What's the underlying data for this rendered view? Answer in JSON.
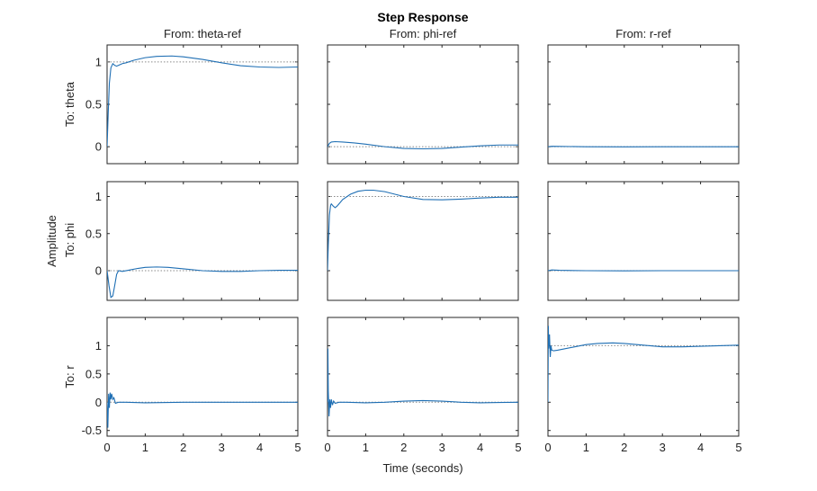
{
  "chart_data": {
    "type": "line",
    "title": "Step Response",
    "xlabel": "Time (seconds)",
    "ylabel": "Amplitude",
    "xlim": [
      0,
      5
    ],
    "x_ticks": [
      "0",
      "1",
      "2",
      "3",
      "4",
      "5"
    ],
    "columns": [
      "From: theta-ref",
      "From: phi-ref",
      "From: r-ref"
    ],
    "rows": [
      {
        "label": "To: theta",
        "ylim": [
          -0.2,
          1.2
        ],
        "ticks": [
          0,
          0.5,
          1
        ],
        "tick_labels": [
          "0",
          "0.5",
          "1"
        ]
      },
      {
        "label": "To: phi",
        "ylim": [
          -0.4,
          1.2
        ],
        "ticks": [
          0,
          0.5,
          1
        ],
        "tick_labels": [
          "0",
          "0.5",
          "1"
        ]
      },
      {
        "label": "To: r",
        "ylim": [
          -0.6,
          1.5
        ],
        "ticks": [
          -0.5,
          0,
          0.5,
          1
        ],
        "tick_labels": [
          "-0.5",
          "0",
          "0.5",
          "1"
        ]
      }
    ],
    "grid": false,
    "panels": [
      {
        "row": 0,
        "col": 0,
        "final_value": 1,
        "x": [
          0,
          0.03,
          0.06,
          0.1,
          0.15,
          0.2,
          0.25,
          0.3,
          0.4,
          0.5,
          0.7,
          1.0,
          1.3,
          1.7,
          2.0,
          2.5,
          3.0,
          3.5,
          4.0,
          4.5,
          5.0
        ],
        "y": [
          0,
          0.4,
          0.75,
          0.93,
          0.98,
          0.96,
          0.95,
          0.96,
          0.98,
          0.99,
          1.02,
          1.05,
          1.065,
          1.07,
          1.06,
          1.03,
          0.99,
          0.955,
          0.94,
          0.935,
          0.94
        ]
      },
      {
        "row": 0,
        "col": 1,
        "final_value": 0,
        "x": [
          0,
          0.05,
          0.1,
          0.2,
          0.4,
          0.7,
          1.0,
          1.5,
          2.0,
          2.5,
          3.0,
          3.5,
          4.0,
          4.5,
          5.0
        ],
        "y": [
          0,
          0.04,
          0.055,
          0.06,
          0.055,
          0.045,
          0.03,
          0.0,
          -0.02,
          -0.025,
          -0.02,
          -0.005,
          0.01,
          0.02,
          0.02
        ]
      },
      {
        "row": 0,
        "col": 2,
        "final_value": 0,
        "x": [
          0,
          0.1,
          0.3,
          1.0,
          2.0,
          3.0,
          4.0,
          5.0
        ],
        "y": [
          0,
          0.005,
          0.003,
          0.0,
          -0.002,
          0.0,
          0.0,
          0.0
        ]
      },
      {
        "row": 1,
        "col": 0,
        "final_value": 0,
        "x": [
          0,
          0.05,
          0.1,
          0.15,
          0.2,
          0.25,
          0.3,
          0.4,
          0.6,
          0.8,
          1.0,
          1.3,
          1.6,
          2.0,
          2.5,
          3.0,
          3.5,
          4.0,
          4.5,
          5.0
        ],
        "y": [
          0,
          -0.2,
          -0.36,
          -0.34,
          -0.2,
          -0.05,
          0.0,
          -0.01,
          0.01,
          0.03,
          0.045,
          0.05,
          0.045,
          0.025,
          0.0,
          -0.01,
          -0.01,
          0.0,
          0.005,
          0.005
        ]
      },
      {
        "row": 1,
        "col": 1,
        "final_value": 1,
        "x": [
          0,
          0.02,
          0.05,
          0.08,
          0.1,
          0.15,
          0.2,
          0.25,
          0.3,
          0.4,
          0.6,
          0.8,
          1.0,
          1.2,
          1.5,
          2.0,
          2.5,
          3.0,
          3.5,
          4.0,
          4.5,
          5.0
        ],
        "y": [
          0,
          0.35,
          0.75,
          0.88,
          0.9,
          0.87,
          0.85,
          0.87,
          0.9,
          0.96,
          1.03,
          1.07,
          1.085,
          1.085,
          1.065,
          1.0,
          0.96,
          0.955,
          0.965,
          0.98,
          0.99,
          0.99
        ]
      },
      {
        "row": 1,
        "col": 2,
        "final_value": 0,
        "x": [
          0,
          0.1,
          0.3,
          1.0,
          2.0,
          3.0,
          4.0,
          5.0
        ],
        "y": [
          0,
          0.01,
          0.005,
          0.0,
          -0.002,
          0.0,
          0.0,
          0.0
        ]
      },
      {
        "row": 2,
        "col": 0,
        "final_value": 0,
        "x": [
          0,
          0.02,
          0.04,
          0.06,
          0.08,
          0.1,
          0.12,
          0.15,
          0.18,
          0.22,
          0.3,
          0.5,
          1.0,
          2.0,
          3.0,
          4.0,
          5.0
        ],
        "y": [
          0,
          -0.45,
          0.15,
          -0.1,
          0.17,
          0.05,
          0.15,
          0.05,
          0.08,
          -0.02,
          0.0,
          0.0,
          -0.01,
          0.0,
          0.0,
          0.0,
          0.0
        ]
      },
      {
        "row": 2,
        "col": 1,
        "final_value": 0,
        "x": [
          0,
          0.01,
          0.02,
          0.04,
          0.06,
          0.08,
          0.1,
          0.13,
          0.16,
          0.2,
          0.3,
          0.5,
          1.0,
          1.5,
          2.0,
          2.5,
          3.0,
          3.5,
          4.0,
          4.5,
          5.0
        ],
        "y": [
          0,
          0.95,
          0.2,
          -0.25,
          0.05,
          -0.1,
          0.05,
          -0.05,
          0.02,
          -0.02,
          0.0,
          0.0,
          -0.01,
          0.0,
          0.02,
          0.03,
          0.02,
          0.0,
          -0.01,
          -0.005,
          0.0
        ]
      },
      {
        "row": 2,
        "col": 2,
        "final_value": 1,
        "x": [
          0,
          0.01,
          0.02,
          0.04,
          0.06,
          0.08,
          0.1,
          0.15,
          0.25,
          0.4,
          0.7,
          1.0,
          1.3,
          1.7,
          2.0,
          2.5,
          3.0,
          3.5,
          4.0,
          4.5,
          5.0
        ],
        "y": [
          0,
          1.35,
          0.95,
          1.2,
          0.8,
          1.0,
          0.92,
          0.91,
          0.92,
          0.94,
          0.98,
          1.02,
          1.04,
          1.05,
          1.04,
          1.01,
          0.98,
          0.98,
          0.99,
          1.0,
          1.01
        ]
      }
    ]
  }
}
